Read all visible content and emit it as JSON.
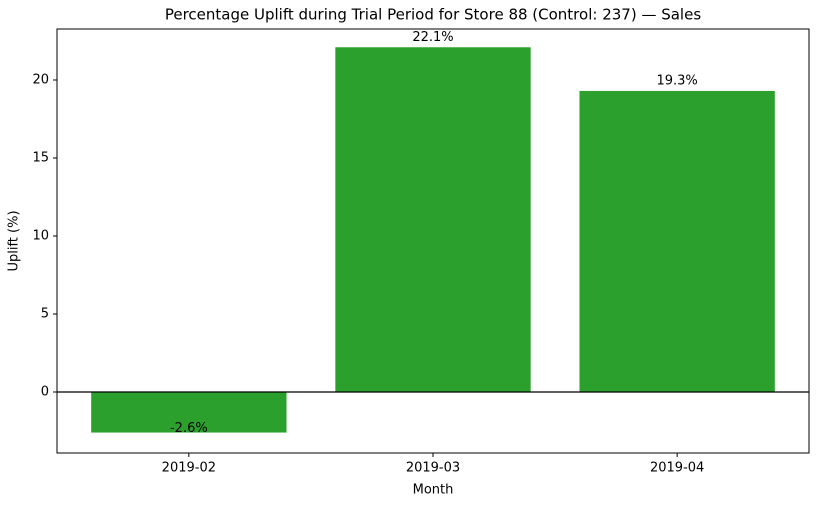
{
  "chart_data": {
    "type": "bar",
    "title": "Percentage Uplift during Trial Period for Store 88 (Control: 237) — Sales",
    "x_label": "Month",
    "y_label": "Uplift (%)",
    "categories": [
      "2019-02",
      "2019-03",
      "2019-04"
    ],
    "values": [
      -2.6,
      22.1,
      19.3
    ],
    "value_labels": [
      "-2.6%",
      "22.1%",
      "19.3%"
    ],
    "color": "#2ca02c",
    "ylim": [
      -3.91,
      23.27
    ],
    "yticks": [
      0,
      5,
      10,
      15,
      20
    ],
    "grid": false
  }
}
